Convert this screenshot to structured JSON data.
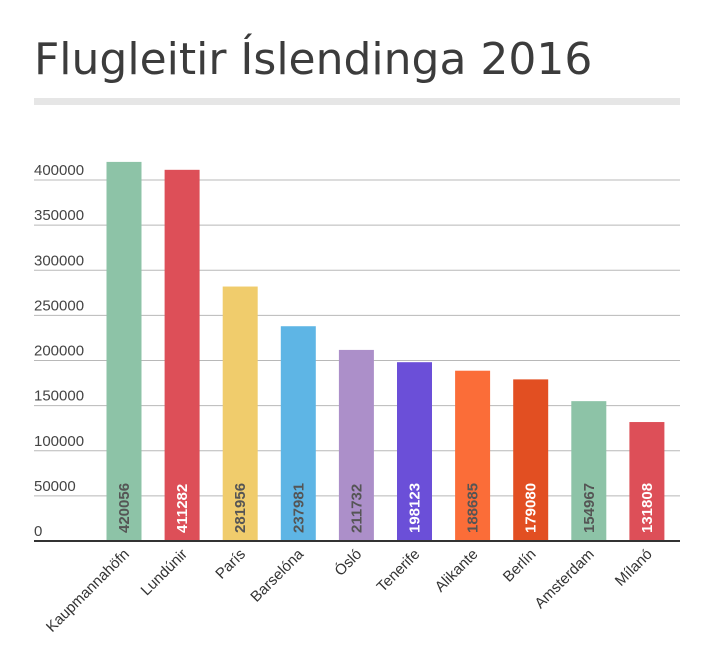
{
  "chart_data": {
    "type": "bar",
    "title": "Flugleitir Íslendinga 2016",
    "categories": [
      "Kaupmannahöfn",
      "Lundúnir",
      "París",
      "Barselóna",
      "Ósló",
      "Tenerife",
      "Alikante",
      "Berlín",
      "Amsterdam",
      "Mílanó"
    ],
    "values": [
      420056,
      411282,
      281956,
      237981,
      211732,
      198123,
      188685,
      179080,
      154967,
      131808
    ],
    "data_labels": [
      "420056",
      "411282",
      "281956",
      "237981",
      "211732",
      "198123",
      "188685",
      "179080",
      "154967",
      "131808"
    ],
    "colors": [
      "#8dc3a7",
      "#dd4f58",
      "#f0cc6c",
      "#5eb5e5",
      "#ac8fc9",
      "#6b4fd8",
      "#fb6d38",
      "#e24f22",
      "#8dc3a7",
      "#dd4f58"
    ],
    "label_colors": [
      "#555555",
      "#ffffff",
      "#555555",
      "#555555",
      "#555555",
      "#ffffff",
      "#555555",
      "#ffffff",
      "#555555",
      "#ffffff"
    ],
    "yticks": [
      0,
      50000,
      100000,
      150000,
      200000,
      250000,
      300000,
      350000,
      400000
    ],
    "ytick_labels": [
      "0",
      "50000",
      "100000",
      "150000",
      "200000",
      "250000",
      "300000",
      "350000",
      "400000"
    ],
    "ylim": [
      0,
      400000
    ],
    "grid": true,
    "legend": "none",
    "xlabel": "",
    "ylabel": ""
  }
}
